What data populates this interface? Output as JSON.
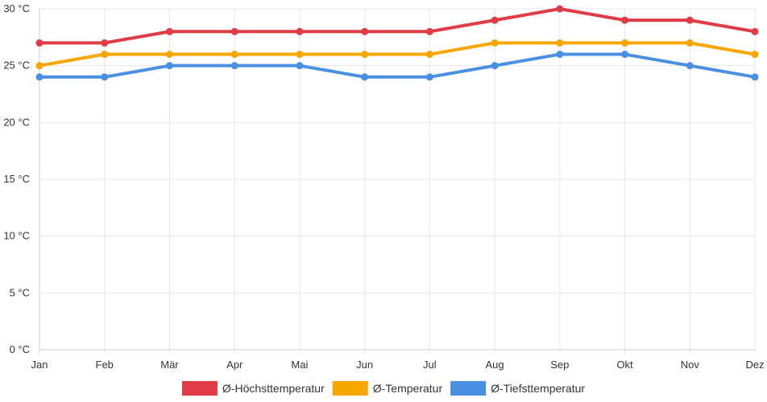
{
  "chart_data": {
    "type": "line",
    "categories": [
      "Jan",
      "Feb",
      "Mär",
      "Apr",
      "Mai",
      "Jun",
      "Jul",
      "Aug",
      "Sep",
      "Okt",
      "Nov",
      "Dez"
    ],
    "y_unit_suffix": " °C",
    "ylim": [
      0,
      30
    ],
    "y_ticks": [
      0,
      5,
      10,
      15,
      20,
      25,
      30
    ],
    "grid": true,
    "legend_position": "bottom",
    "series": [
      {
        "name": "Ø-Höchsttemperatur",
        "color": "#e03c46",
        "values": [
          27,
          27,
          28,
          28,
          28,
          28,
          28,
          29,
          30,
          29,
          29,
          28
        ]
      },
      {
        "name": "Ø-Temperatur",
        "color": "#f7a600",
        "values": [
          25,
          26,
          26,
          26,
          26,
          26,
          26,
          27,
          27,
          27,
          27,
          26
        ]
      },
      {
        "name": "Ø-Tiefsttemperatur",
        "color": "#4a90e2",
        "values": [
          24,
          24,
          25,
          25,
          25,
          24,
          24,
          25,
          26,
          26,
          25,
          24
        ]
      }
    ]
  }
}
